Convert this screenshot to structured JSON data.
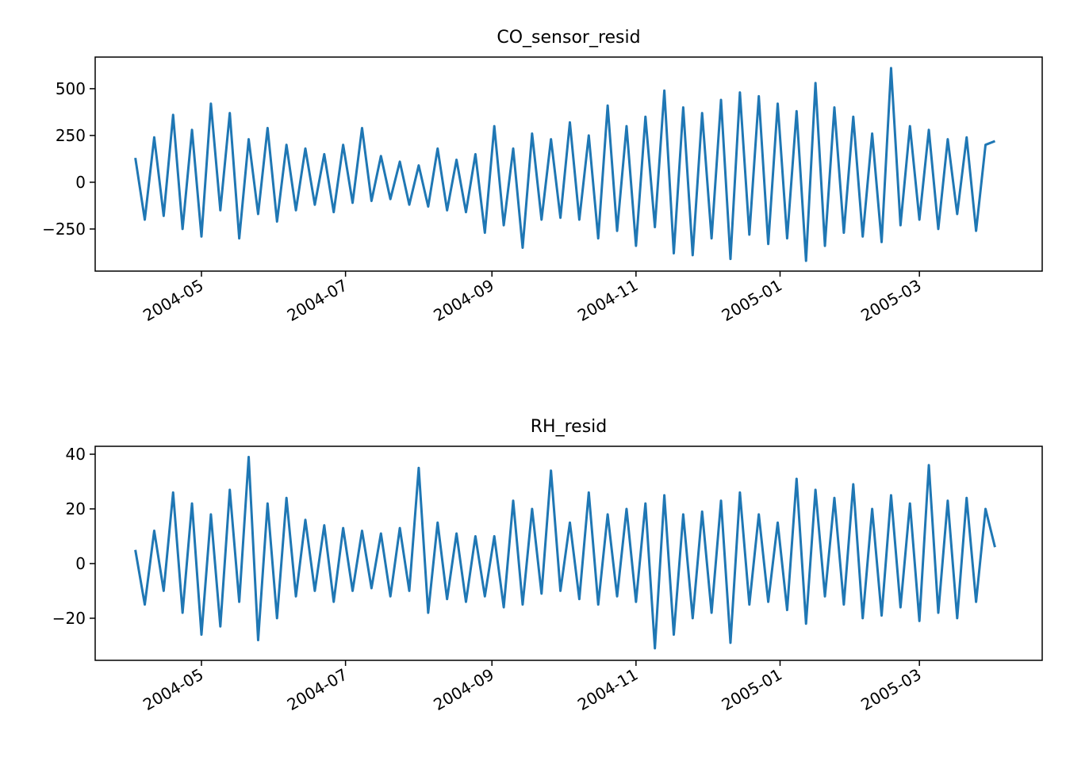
{
  "chart_data": [
    {
      "type": "line",
      "title": "CO_sensor_resid",
      "color": "#1f77b4",
      "x": [
        "2004-04-03",
        "2004-04-07",
        "2004-04-11",
        "2004-04-15",
        "2004-04-19",
        "2004-04-23",
        "2004-04-27",
        "2004-05-01",
        "2004-05-05",
        "2004-05-09",
        "2004-05-13",
        "2004-05-17",
        "2004-05-21",
        "2004-05-25",
        "2004-05-29",
        "2004-06-02",
        "2004-06-06",
        "2004-06-10",
        "2004-06-14",
        "2004-06-18",
        "2004-06-22",
        "2004-06-26",
        "2004-06-30",
        "2004-07-04",
        "2004-07-08",
        "2004-07-12",
        "2004-07-16",
        "2004-07-20",
        "2004-07-24",
        "2004-07-28",
        "2004-08-01",
        "2004-08-05",
        "2004-08-09",
        "2004-08-13",
        "2004-08-17",
        "2004-08-21",
        "2004-08-25",
        "2004-08-29",
        "2004-09-02",
        "2004-09-06",
        "2004-09-10",
        "2004-09-14",
        "2004-09-18",
        "2004-09-22",
        "2004-09-26",
        "2004-09-30",
        "2004-10-04",
        "2004-10-08",
        "2004-10-12",
        "2004-10-16",
        "2004-10-20",
        "2004-10-24",
        "2004-10-28",
        "2004-11-01",
        "2004-11-05",
        "2004-11-09",
        "2004-11-13",
        "2004-11-17",
        "2004-11-21",
        "2004-11-25",
        "2004-11-29",
        "2004-12-03",
        "2004-12-07",
        "2004-12-11",
        "2004-12-15",
        "2004-12-19",
        "2004-12-23",
        "2004-12-27",
        "2004-12-31",
        "2005-01-04",
        "2005-01-08",
        "2005-01-12",
        "2005-01-16",
        "2005-01-20",
        "2005-01-24",
        "2005-01-28",
        "2005-02-01",
        "2005-02-05",
        "2005-02-09",
        "2005-02-13",
        "2005-02-17",
        "2005-02-21",
        "2005-02-25",
        "2005-03-01",
        "2005-03-05",
        "2005-03-09",
        "2005-03-13",
        "2005-03-17",
        "2005-03-21",
        "2005-03-25",
        "2005-03-29",
        "2005-04-02"
      ],
      "values": [
        130,
        -200,
        240,
        -180,
        360,
        -250,
        280,
        -290,
        420,
        -150,
        370,
        -300,
        230,
        -170,
        290,
        -210,
        200,
        -150,
        180,
        -120,
        150,
        -160,
        200,
        -110,
        290,
        -100,
        140,
        -90,
        110,
        -120,
        90,
        -130,
        180,
        -150,
        120,
        -160,
        150,
        -270,
        300,
        -230,
        180,
        -350,
        260,
        -200,
        230,
        -190,
        320,
        -200,
        250,
        -300,
        410,
        -260,
        300,
        -340,
        350,
        -240,
        490,
        -380,
        400,
        -390,
        370,
        -300,
        440,
        -410,
        480,
        -280,
        460,
        -330,
        420,
        -300,
        380,
        -420,
        530,
        -340,
        400,
        -270,
        350,
        -290,
        260,
        -320,
        610,
        -230,
        300,
        -200,
        280,
        -250,
        230,
        -170,
        240,
        -260,
        200,
        220
      ],
      "xlim": [
        "2004-03-17",
        "2005-04-22"
      ],
      "xticks": [
        {
          "value": "2004-05-01",
          "label": "2004-05"
        },
        {
          "value": "2004-07-01",
          "label": "2004-07"
        },
        {
          "value": "2004-09-01",
          "label": "2004-09"
        },
        {
          "value": "2004-11-01",
          "label": "2004-11"
        },
        {
          "value": "2005-01-01",
          "label": "2005-01"
        },
        {
          "value": "2005-03-01",
          "label": "2005-03"
        }
      ],
      "ylim": [
        -475,
        669
      ],
      "yticks": [
        {
          "value": -250,
          "label": "−250"
        },
        0,
        250,
        500
      ]
    },
    {
      "type": "line",
      "title": "RH_resid",
      "color": "#1f77b4",
      "x": [
        "2004-04-03",
        "2004-04-07",
        "2004-04-11",
        "2004-04-15",
        "2004-04-19",
        "2004-04-23",
        "2004-04-27",
        "2004-05-01",
        "2004-05-05",
        "2004-05-09",
        "2004-05-13",
        "2004-05-17",
        "2004-05-21",
        "2004-05-25",
        "2004-05-29",
        "2004-06-02",
        "2004-06-06",
        "2004-06-10",
        "2004-06-14",
        "2004-06-18",
        "2004-06-22",
        "2004-06-26",
        "2004-06-30",
        "2004-07-04",
        "2004-07-08",
        "2004-07-12",
        "2004-07-16",
        "2004-07-20",
        "2004-07-24",
        "2004-07-28",
        "2004-08-01",
        "2004-08-05",
        "2004-08-09",
        "2004-08-13",
        "2004-08-17",
        "2004-08-21",
        "2004-08-25",
        "2004-08-29",
        "2004-09-02",
        "2004-09-06",
        "2004-09-10",
        "2004-09-14",
        "2004-09-18",
        "2004-09-22",
        "2004-09-26",
        "2004-09-30",
        "2004-10-04",
        "2004-10-08",
        "2004-10-12",
        "2004-10-16",
        "2004-10-20",
        "2004-10-24",
        "2004-10-28",
        "2004-11-01",
        "2004-11-05",
        "2004-11-09",
        "2004-11-13",
        "2004-11-17",
        "2004-11-21",
        "2004-11-25",
        "2004-11-29",
        "2004-12-03",
        "2004-12-07",
        "2004-12-11",
        "2004-12-15",
        "2004-12-19",
        "2004-12-23",
        "2004-12-27",
        "2004-12-31",
        "2005-01-04",
        "2005-01-08",
        "2005-01-12",
        "2005-01-16",
        "2005-01-20",
        "2005-01-24",
        "2005-01-28",
        "2005-02-01",
        "2005-02-05",
        "2005-02-09",
        "2005-02-13",
        "2005-02-17",
        "2005-02-21",
        "2005-02-25",
        "2005-03-01",
        "2005-03-05",
        "2005-03-09",
        "2005-03-13",
        "2005-03-17",
        "2005-03-21",
        "2005-03-25",
        "2005-03-29",
        "2005-04-02"
      ],
      "values": [
        5,
        -15,
        12,
        -10,
        26,
        -18,
        22,
        -26,
        18,
        -23,
        27,
        -14,
        39,
        -28,
        22,
        -20,
        24,
        -12,
        16,
        -10,
        14,
        -14,
        13,
        -10,
        12,
        -9,
        11,
        -12,
        13,
        -10,
        35,
        -18,
        15,
        -13,
        11,
        -14,
        10,
        -12,
        10,
        -16,
        23,
        -15,
        20,
        -11,
        34,
        -10,
        15,
        -13,
        26,
        -15,
        18,
        -12,
        20,
        -14,
        22,
        -31,
        25,
        -26,
        18,
        -20,
        19,
        -18,
        23,
        -29,
        26,
        -15,
        18,
        -14,
        15,
        -17,
        31,
        -22,
        27,
        -12,
        24,
        -15,
        29,
        -20,
        20,
        -19,
        25,
        -16,
        22,
        -21,
        36,
        -18,
        23,
        -20,
        24,
        -14,
        20,
        6
      ],
      "xlim": [
        "2004-03-17",
        "2005-04-22"
      ],
      "xticks": [
        {
          "value": "2004-05-01",
          "label": "2004-05"
        },
        {
          "value": "2004-07-01",
          "label": "2004-07"
        },
        {
          "value": "2004-09-01",
          "label": "2004-09"
        },
        {
          "value": "2004-11-01",
          "label": "2004-11"
        },
        {
          "value": "2005-01-01",
          "label": "2005-01"
        },
        {
          "value": "2005-03-01",
          "label": "2005-03"
        }
      ],
      "ylim": [
        -35.4,
        42.9
      ],
      "yticks": [
        {
          "value": -20,
          "label": "−20"
        },
        0,
        20,
        40
      ]
    }
  ]
}
